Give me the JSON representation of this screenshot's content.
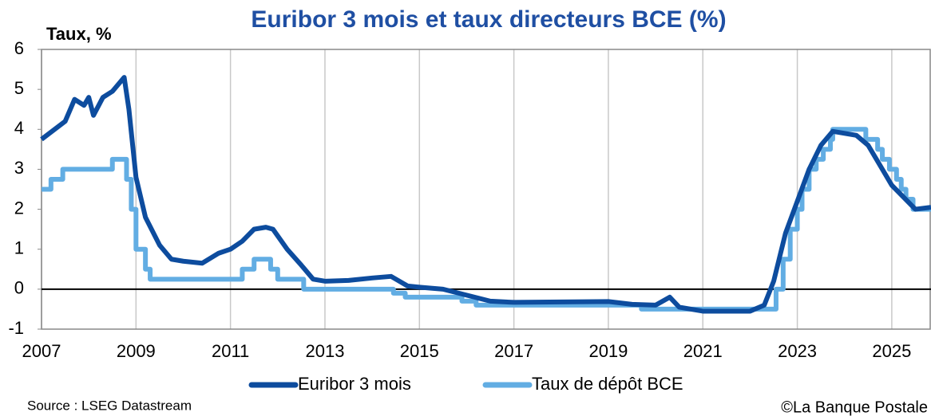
{
  "chart_data": {
    "type": "line",
    "title": "Euribor 3 mois et taux directeurs BCE (%)",
    "y_label": "Taux, %",
    "source": "Source : LSEG Datastream",
    "credit": "©La Banque Postale",
    "xlim": [
      2007,
      2025.83
    ],
    "xticks": [
      2007,
      2009,
      2011,
      2013,
      2015,
      2017,
      2019,
      2021,
      2023,
      2025
    ],
    "ylim": [
      -1,
      6
    ],
    "yticks": [
      -1,
      0,
      1,
      2,
      3,
      4,
      5,
      6
    ],
    "grid": "x",
    "legend": "bottom",
    "series": [
      {
        "name": "Taux de dépôt BCE",
        "color": "#62ade3",
        "x": [
          2007,
          2007.2,
          2007.2,
          2007.45,
          2007.45,
          2008.5,
          2008.5,
          2008.8,
          2008.8,
          2008.9,
          2008.9,
          2009.0,
          2009.0,
          2009.2,
          2009.2,
          2009.3,
          2009.3,
          2011.25,
          2011.25,
          2011.5,
          2011.5,
          2011.85,
          2011.85,
          2012.0,
          2012.0,
          2012.55,
          2012.55,
          2014.45,
          2014.45,
          2014.7,
          2014.7,
          2015.9,
          2015.9,
          2016.2,
          2016.2,
          2019.7,
          2019.7,
          2022.55,
          2022.55,
          2022.7,
          2022.7,
          2022.85,
          2022.85,
          2023.0,
          2023.0,
          2023.1,
          2023.1,
          2023.25,
          2023.25,
          2023.4,
          2023.4,
          2023.55,
          2023.55,
          2023.7,
          2023.7,
          2023.75,
          2023.75,
          2024.45,
          2024.45,
          2024.7,
          2024.7,
          2024.8,
          2024.8,
          2024.95,
          2024.95,
          2025.1,
          2025.1,
          2025.2,
          2025.2,
          2025.3,
          2025.3,
          2025.45,
          2025.45,
          2025.83
        ],
        "values": [
          2.5,
          2.5,
          2.75,
          2.75,
          3.0,
          3.0,
          3.25,
          3.25,
          2.75,
          2.75,
          2.0,
          2.0,
          1.0,
          1.0,
          0.5,
          0.5,
          0.25,
          0.25,
          0.5,
          0.5,
          0.75,
          0.75,
          0.5,
          0.5,
          0.25,
          0.25,
          0.0,
          0.0,
          -0.1,
          -0.1,
          -0.2,
          -0.2,
          -0.3,
          -0.3,
          -0.4,
          -0.4,
          -0.5,
          -0.5,
          0.0,
          0.0,
          0.75,
          0.75,
          1.5,
          1.5,
          2.0,
          2.0,
          2.5,
          2.5,
          3.0,
          3.0,
          3.25,
          3.25,
          3.5,
          3.5,
          3.75,
          3.75,
          4.0,
          4.0,
          3.75,
          3.75,
          3.5,
          3.5,
          3.25,
          3.25,
          3.0,
          3.0,
          2.75,
          2.75,
          2.5,
          2.5,
          2.25,
          2.25,
          2.0,
          2.0
        ]
      },
      {
        "name": "Euribor 3 mois",
        "color": "#0d4c9e",
        "x": [
          2007.0,
          2007.5,
          2007.7,
          2007.9,
          2008.0,
          2008.1,
          2008.3,
          2008.5,
          2008.75,
          2008.85,
          2009.0,
          2009.2,
          2009.5,
          2009.75,
          2010.0,
          2010.4,
          2010.75,
          2011.0,
          2011.25,
          2011.5,
          2011.75,
          2011.9,
          2012.2,
          2012.5,
          2012.75,
          2013.0,
          2013.5,
          2014.0,
          2014.4,
          2014.75,
          2015.0,
          2015.5,
          2016.0,
          2016.5,
          2017.0,
          2018.0,
          2019.0,
          2019.5,
          2020.0,
          2020.3,
          2020.5,
          2021.0,
          2022.0,
          2022.3,
          2022.5,
          2022.75,
          2023.0,
          2023.25,
          2023.5,
          2023.75,
          2024.0,
          2024.25,
          2024.5,
          2024.75,
          2025.0,
          2025.25,
          2025.5,
          2025.83
        ],
        "values": [
          3.75,
          4.2,
          4.75,
          4.6,
          4.8,
          4.35,
          4.8,
          4.95,
          5.3,
          4.5,
          2.8,
          1.8,
          1.1,
          0.75,
          0.7,
          0.65,
          0.9,
          1.0,
          1.2,
          1.5,
          1.55,
          1.5,
          1.0,
          0.6,
          0.25,
          0.2,
          0.22,
          0.28,
          0.32,
          0.08,
          0.05,
          0.0,
          -0.15,
          -0.3,
          -0.33,
          -0.32,
          -0.31,
          -0.38,
          -0.4,
          -0.2,
          -0.45,
          -0.55,
          -0.55,
          -0.4,
          0.2,
          1.4,
          2.2,
          3.0,
          3.6,
          3.95,
          3.9,
          3.85,
          3.6,
          3.1,
          2.6,
          2.3,
          2.0,
          2.05
        ]
      }
    ]
  }
}
